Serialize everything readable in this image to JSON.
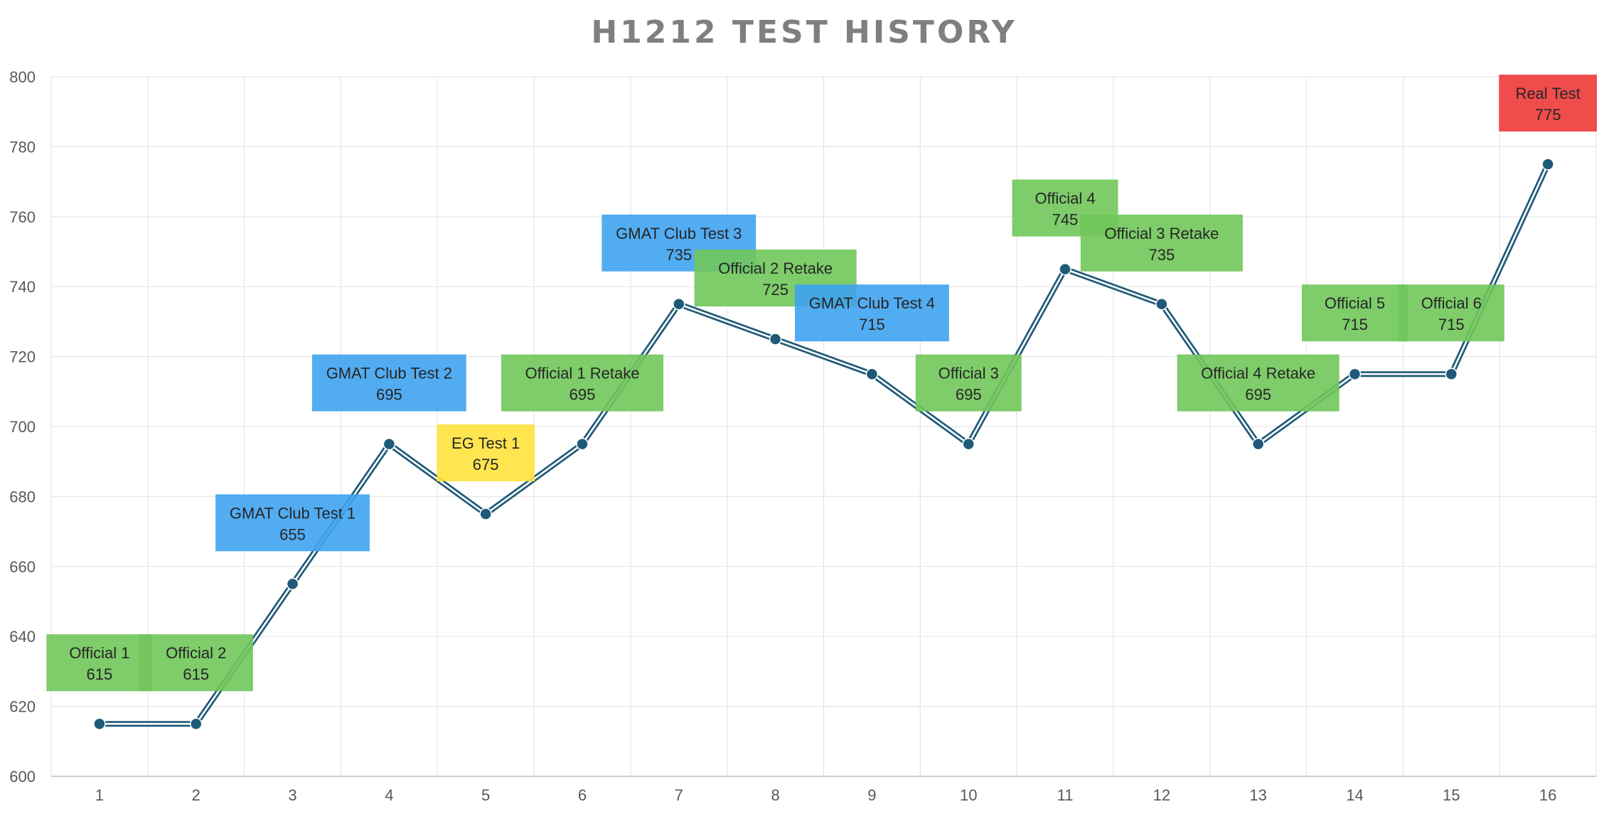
{
  "chart_data": {
    "type": "line",
    "title": "H1212 TEST HISTORY",
    "xlabel": "",
    "ylabel": "",
    "x": [
      1,
      2,
      3,
      4,
      5,
      6,
      7,
      8,
      9,
      10,
      11,
      12,
      13,
      14,
      15,
      16
    ],
    "ylim": [
      600,
      800
    ],
    "yticks": [
      600,
      620,
      640,
      660,
      680,
      700,
      720,
      740,
      760,
      780,
      800
    ],
    "grid": true,
    "legend": "none",
    "series": [
      {
        "values": [
          615,
          615,
          655,
          695,
          675,
          695,
          735,
          725,
          715,
          695,
          745,
          735,
          695,
          715,
          715,
          775
        ],
        "color": "#1f5a78"
      }
    ],
    "points": [
      {
        "x": 1,
        "label": "Official 1",
        "value": 615,
        "category": "official",
        "pos": "above"
      },
      {
        "x": 2,
        "label": "Official  2",
        "value": 615,
        "category": "official",
        "pos": "above"
      },
      {
        "x": 3,
        "label": "GMAT Club Test 1",
        "value": 655,
        "category": "gmatclub",
        "pos": "above"
      },
      {
        "x": 4,
        "label": "GMAT Club Test 2",
        "value": 695,
        "category": "gmatclub",
        "pos": "above"
      },
      {
        "x": 5,
        "label": "EG Test 1",
        "value": 675,
        "category": "eg",
        "pos": "above"
      },
      {
        "x": 6,
        "label": "Official 1 Retake",
        "value": 695,
        "category": "official",
        "pos": "above"
      },
      {
        "x": 7,
        "label": "GMAT Club Test 3",
        "value": 735,
        "category": "gmatclub",
        "pos": "above"
      },
      {
        "x": 8,
        "label": "Official 2 Retake",
        "value": 725,
        "category": "official",
        "pos": "above"
      },
      {
        "x": 9,
        "label": "GMAT Club Test 4",
        "value": 715,
        "category": "gmatclub",
        "pos": "above"
      },
      {
        "x": 10,
        "label": "Official 3",
        "value": 695,
        "category": "official",
        "pos": "above"
      },
      {
        "x": 11,
        "label": "Official 4",
        "value": 745,
        "category": "official",
        "pos": "above"
      },
      {
        "x": 12,
        "label": "Official 3 Retake",
        "value": 735,
        "category": "official",
        "pos": "above"
      },
      {
        "x": 13,
        "label": "Official 4 Retake",
        "value": 695,
        "category": "official",
        "pos": "above"
      },
      {
        "x": 14,
        "label": "Official 5",
        "value": 715,
        "category": "official",
        "pos": "above"
      },
      {
        "x": 15,
        "label": "Official 6",
        "value": 715,
        "category": "official",
        "pos": "above"
      },
      {
        "x": 16,
        "label": "Real Test",
        "value": 775,
        "category": "real",
        "pos": "above"
      }
    ],
    "label_colors": {
      "official": "#70c75a",
      "gmatclub": "#3fa3ef",
      "eg": "#ffe23d",
      "real": "#ee3838"
    }
  }
}
